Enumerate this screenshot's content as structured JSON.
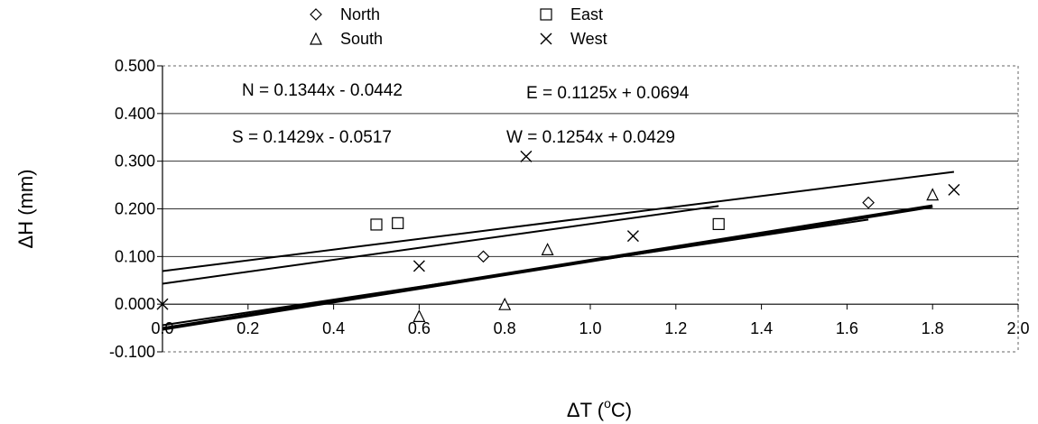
{
  "chart_data": {
    "type": "scatter",
    "xlabel_base": "ΔT (",
    "xlabel_sup": "o",
    "xlabel_tail": "C)",
    "ylabel": "ΔH (mm)",
    "xlim": [
      0,
      2.0
    ],
    "ylim": [
      -0.1,
      0.5
    ],
    "x_ticks": [
      "0.0",
      "0.2",
      "0.4",
      "0.6",
      "0.8",
      "1.0",
      "1.2",
      "1.4",
      "1.6",
      "1.8",
      "2.0"
    ],
    "y_ticks": [
      "0.500",
      "0.400",
      "0.300",
      "0.200",
      "0.100",
      "0.000",
      "-0.100"
    ],
    "grid": true,
    "legend_position": "top",
    "series": [
      {
        "name": "North",
        "marker": "diamond",
        "points": [
          [
            0.75,
            0.1
          ],
          [
            1.65,
            0.213
          ]
        ],
        "trend": {
          "slope": 0.1344,
          "intercept": -0.0442,
          "x_range": [
            0.0,
            1.65
          ]
        }
      },
      {
        "name": "East",
        "marker": "square",
        "points": [
          [
            0.5,
            0.167
          ],
          [
            0.55,
            0.17
          ],
          [
            1.3,
            0.168
          ]
        ],
        "trend": {
          "slope": 0.1125,
          "intercept": 0.0694,
          "x_range": [
            0.0,
            1.85
          ]
        }
      },
      {
        "name": "South",
        "marker": "triangle",
        "points": [
          [
            0.6,
            -0.025
          ],
          [
            0.8,
            0.0
          ],
          [
            0.9,
            0.115
          ],
          [
            1.8,
            0.23
          ]
        ],
        "trend": {
          "slope": 0.1429,
          "intercept": -0.0517,
          "x_range": [
            0.0,
            1.8
          ]
        }
      },
      {
        "name": "West",
        "marker": "x",
        "points": [
          [
            0.0,
            0.0
          ],
          [
            0.6,
            0.08
          ],
          [
            0.85,
            0.31
          ],
          [
            1.1,
            0.143
          ],
          [
            1.85,
            0.24
          ]
        ],
        "trend": {
          "slope": 0.1254,
          "intercept": 0.0429,
          "x_range": [
            0.0,
            1.3
          ]
        }
      }
    ],
    "annotations": [
      "N = 0.1344x - 0.0442",
      "E = 0.1125x + 0.0694",
      "S = 0.1429x - 0.0517",
      "W = 0.1254x + 0.0429"
    ]
  }
}
